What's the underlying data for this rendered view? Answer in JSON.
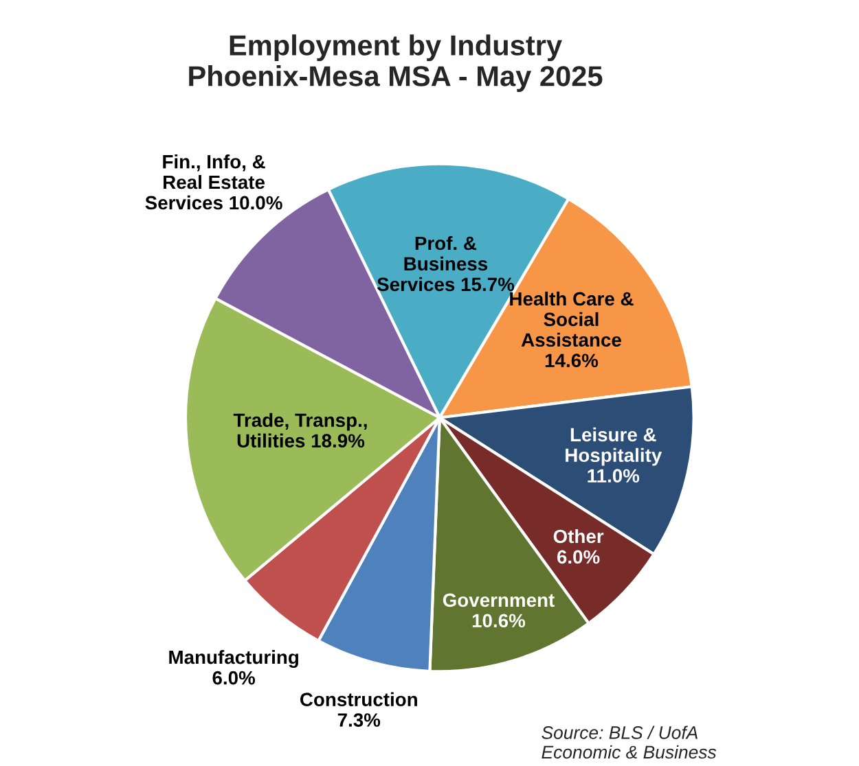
{
  "chart_data": {
    "type": "pie",
    "title": "Employment by Industry\nPhoenix-Mesa MSA - May 2025",
    "categories": [
      "Prof. &\nBusiness\nServices",
      "Health Care &\nSocial\nAssistance",
      "Leisure &\nHospitality",
      "Other",
      "Government",
      "Construction",
      "Manufacturing",
      "Trade, Transp.,\nUtilities",
      "Fin., Info, &\nReal Estate\nServices"
    ],
    "values": [
      15.7,
      14.6,
      11.0,
      6.0,
      10.6,
      7.3,
      6.0,
      18.9,
      10.0
    ],
    "value_labels": [
      "15.7%",
      "14.6%",
      "11.0%",
      "6.0%",
      "10.6%",
      "7.3%",
      "6.0%",
      "18.9%",
      "10.0%"
    ],
    "colors": [
      "#4bacc6",
      "#f79646",
      "#2c4d75",
      "#772c2a",
      "#5f7530",
      "#4f81bd",
      "#c0504d",
      "#9bbb59",
      "#8064a2"
    ],
    "legend": false,
    "annotations": [
      "Source: BLS / UofA\nEconomic & Business"
    ]
  }
}
